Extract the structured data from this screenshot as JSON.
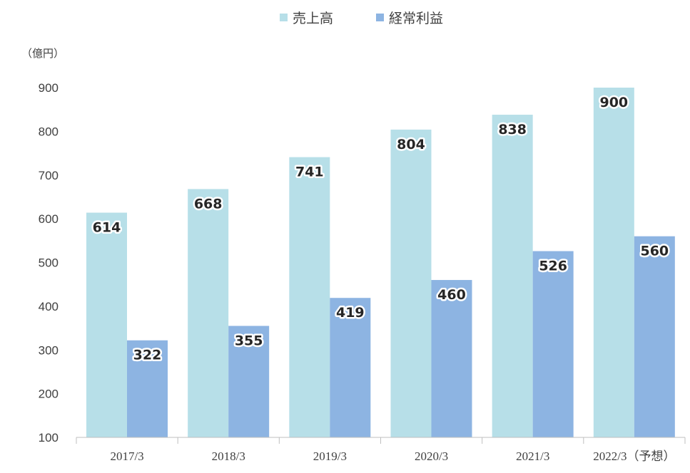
{
  "chart_data": {
    "type": "bar",
    "unit_label": "（億円）",
    "categories": [
      "2017/3",
      "2018/3",
      "2019/3",
      "2020/3",
      "2021/3",
      "2022/3（予想）"
    ],
    "series": [
      {
        "name": "売上高",
        "color": "#b7dfe8",
        "values": [
          614,
          668,
          741,
          804,
          838,
          900
        ]
      },
      {
        "name": "経常利益",
        "color": "#8db4e2",
        "values": [
          322,
          355,
          419,
          460,
          526,
          560
        ]
      }
    ],
    "ylim": [
      100,
      900
    ],
    "yticks": [
      100,
      200,
      300,
      400,
      500,
      600,
      700,
      800,
      900
    ],
    "grid": false,
    "legend_position": "top-center"
  }
}
